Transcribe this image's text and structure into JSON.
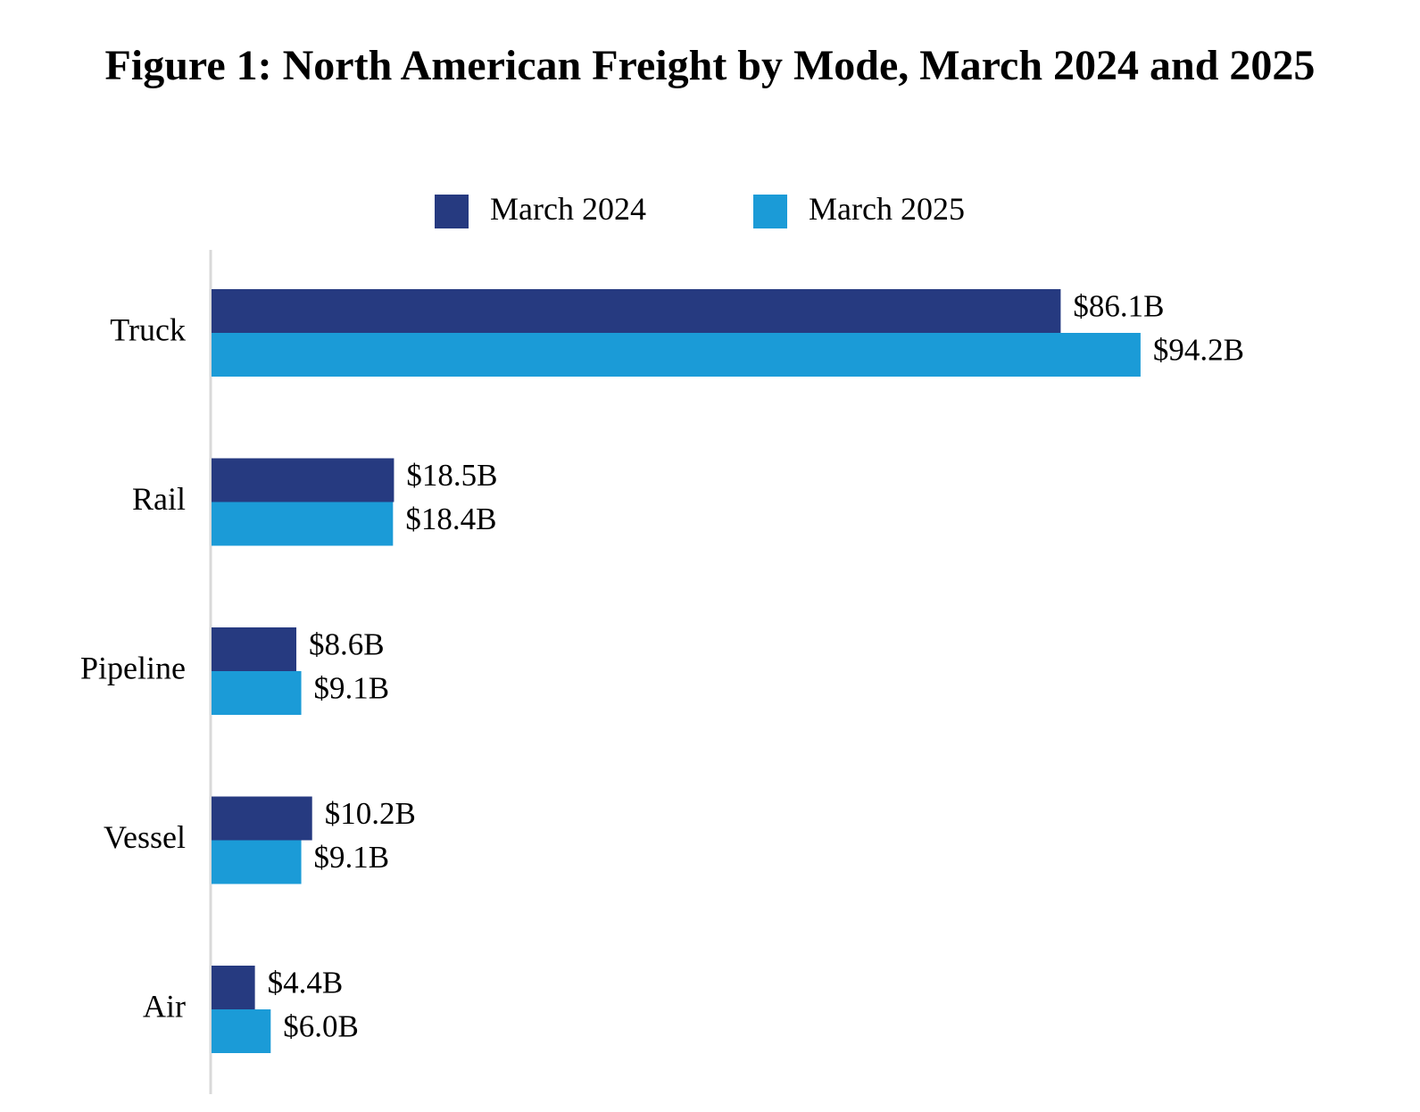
{
  "chart_data": {
    "type": "bar",
    "orientation": "horizontal",
    "title": "Figure 1: North American Freight by Mode, March 2024 and 2025",
    "xlabel": "",
    "ylabel": "",
    "categories": [
      "Truck",
      "Rail",
      "Pipeline",
      "Vessel",
      "Air"
    ],
    "series": [
      {
        "name": "March 2024",
        "color": "#263a80",
        "values": [
          86.1,
          18.5,
          8.6,
          10.2,
          4.4
        ],
        "labels": [
          "$86.1B",
          "$18.5B",
          "$8.6B",
          "$10.2B",
          "$4.4B"
        ]
      },
      {
        "name": "March 2025",
        "color": "#1b9bd7",
        "values": [
          94.2,
          18.4,
          9.1,
          9.1,
          6.0
        ],
        "labels": [
          "$94.2B",
          "$18.4B",
          "$9.1B",
          "$9.1B",
          "$6.0B"
        ]
      }
    ],
    "xlim": [
      0,
      100
    ],
    "grid": false,
    "legend": "top"
  }
}
